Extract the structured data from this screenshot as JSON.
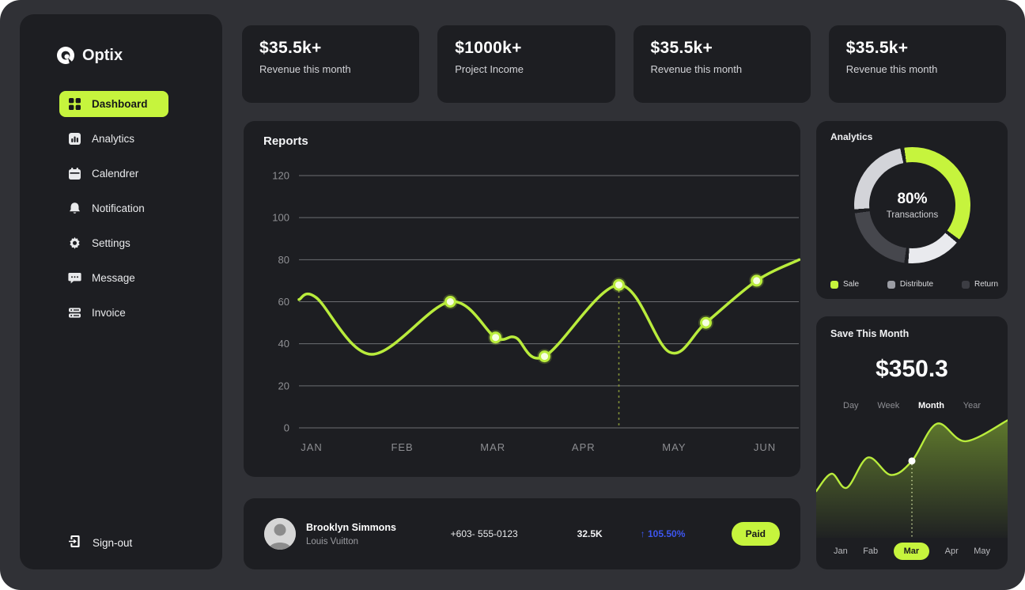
{
  "colors": {
    "accent": "#c6f43d",
    "panel": "#1d1e22",
    "background": "#303136",
    "blue": "#3d56f0",
    "line_green": "#b9ec3c"
  },
  "sidebar": {
    "logo_text": "Optix",
    "items": [
      {
        "label": "Dashboard",
        "icon": "grid-icon",
        "active": true
      },
      {
        "label": "Analytics",
        "icon": "bar-chart-icon",
        "active": false
      },
      {
        "label": "Calendrer",
        "icon": "calendar-icon",
        "active": false
      },
      {
        "label": "Notification",
        "icon": "bell-icon",
        "active": false
      },
      {
        "label": "Settings",
        "icon": "gear-icon",
        "active": false
      },
      {
        "label": "Message",
        "icon": "message-icon",
        "active": false
      },
      {
        "label": "Invoice",
        "icon": "invoice-icon",
        "active": false
      }
    ],
    "signout_label": "Sign-out"
  },
  "stat_cards": [
    {
      "value": "$35.5k+",
      "label": "Revenue this month"
    },
    {
      "value": "$1000k+",
      "label": "Project Income"
    },
    {
      "value": "$35.5k+",
      "label": "Revenue this month"
    },
    {
      "value": "$35.5k+",
      "label": "Revenue this month"
    }
  ],
  "reports": {
    "title": "Reports",
    "chart_data": {
      "type": "line",
      "x_labels": [
        "JAN",
        "FEB",
        "MAR",
        "APR",
        "MAY",
        "JUN"
      ],
      "y_ticks": [
        0,
        20,
        40,
        60,
        80,
        100,
        120
      ],
      "ylim": [
        0,
        120
      ],
      "grid": true,
      "line_color": "#b9ec3c",
      "points": [
        [
          0.86,
          61
        ],
        [
          1.05,
          62
        ],
        [
          1.66,
          35
        ],
        [
          2.53,
          60
        ],
        [
          3.03,
          43
        ],
        [
          3.25,
          43
        ],
        [
          3.57,
          34
        ],
        [
          4.39,
          68
        ],
        [
          4.95,
          36
        ],
        [
          5.35,
          50
        ],
        [
          5.91,
          70
        ],
        [
          6.38,
          80
        ]
      ],
      "marker_indices": [
        3,
        4,
        6,
        7,
        9,
        10
      ],
      "highlight_point": [
        4.39,
        68
      ]
    }
  },
  "analytics": {
    "title": "Analytics",
    "center_value": "80%",
    "center_label": "Transactions",
    "chart_data": {
      "type": "pie",
      "donut": true,
      "segments": [
        {
          "label": "Sale",
          "color": "#c6f43d",
          "from": -8,
          "to": 126
        },
        {
          "label": "Distribute",
          "color": "#e9eaee",
          "from": 130,
          "to": 184
        },
        {
          "label": "Return",
          "color": "#46474d",
          "from": 188,
          "to": 262
        },
        {
          "label": "Distribute",
          "color": "#d3d4d9",
          "from": 266,
          "to": 348
        }
      ]
    },
    "legend": [
      {
        "label": "Sale",
        "color": "#c6f43d"
      },
      {
        "label": "Distribute",
        "color": "#9b9da4"
      },
      {
        "label": "Return",
        "color": "#3c3d43"
      }
    ]
  },
  "save_month": {
    "title": "Save This Month",
    "value": "$350.3",
    "tabs": [
      "Day",
      "Week",
      "Month",
      "Year"
    ],
    "active_tab": "Month",
    "chart_data": {
      "type": "area",
      "x_labels": [
        "Jan",
        "Fab",
        "Mar",
        "Apr",
        "May"
      ],
      "active_label": "Mar",
      "points": [
        [
          0,
          36
        ],
        [
          8,
          51
        ],
        [
          16,
          39
        ],
        [
          27,
          65
        ],
        [
          39,
          50
        ],
        [
          50,
          62
        ],
        [
          63,
          94
        ],
        [
          78,
          79
        ],
        [
          100,
          97
        ]
      ],
      "marker_index": 5
    }
  },
  "transaction_row": {
    "name": "Brooklyn Simmons",
    "company": "Louis Vuitton",
    "phone": "+603- 555-0123",
    "amount": "32.5K",
    "change_arrow": "↑",
    "change": "105.50%",
    "status": "Paid"
  }
}
